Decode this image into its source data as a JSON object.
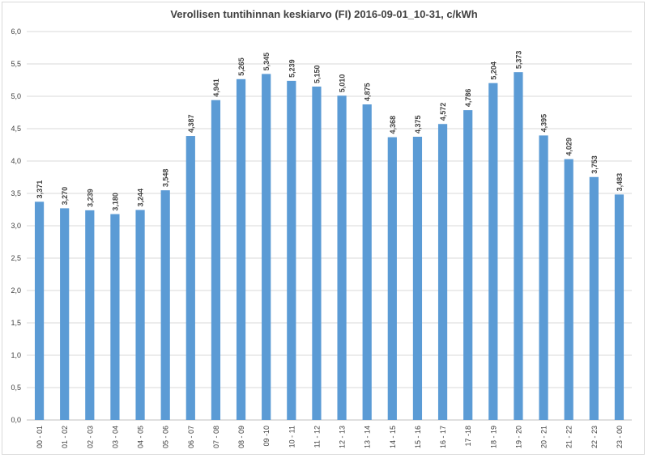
{
  "chart_data": {
    "type": "bar",
    "title": "Verollisen tuntihinnan keskiarvo (FI) 2016-09-01_10-31, c/kWh",
    "xlabel": "",
    "ylabel": "",
    "ylim": [
      0,
      6
    ],
    "yticks": [
      "0,0",
      "0,5",
      "1,0",
      "1,5",
      "2,0",
      "2,5",
      "3,0",
      "3,5",
      "4,0",
      "4,5",
      "5,0",
      "5,5",
      "6,0"
    ],
    "grid": true,
    "legend": "none",
    "bar_color": "#5b9bd5",
    "categories": [
      "00 - 01",
      "01 - 02",
      "02 - 03",
      "03 - 04",
      "04 - 05",
      "05 - 06",
      "06 - 07",
      "07 - 08",
      "08 - 09",
      "09 -10",
      "10 - 11",
      "11 - 12",
      "12 - 13",
      "13 - 14",
      "14 - 15",
      "15 - 16",
      "16 - 17",
      "17 -18",
      "18 - 19",
      "19 - 20",
      "20 - 21",
      "21 - 22",
      "22 - 23",
      "23 - 00"
    ],
    "values": [
      3.371,
      3.27,
      3.239,
      3.18,
      3.244,
      3.548,
      4.387,
      4.941,
      5.265,
      5.345,
      5.239,
      5.15,
      5.01,
      4.875,
      4.368,
      4.375,
      4.572,
      4.786,
      5.204,
      5.373,
      4.395,
      4.029,
      3.753,
      3.483
    ],
    "data_labels": [
      "3,371",
      "3,270",
      "3,239",
      "3,180",
      "3,244",
      "3,548",
      "4,387",
      "4,941",
      "5,265",
      "5,345",
      "5,239",
      "5,150",
      "5,010",
      "4,875",
      "4,368",
      "4,375",
      "4,572",
      "4,786",
      "5,204",
      "5,373",
      "4,395",
      "4,029",
      "3,753",
      "3,483"
    ]
  }
}
